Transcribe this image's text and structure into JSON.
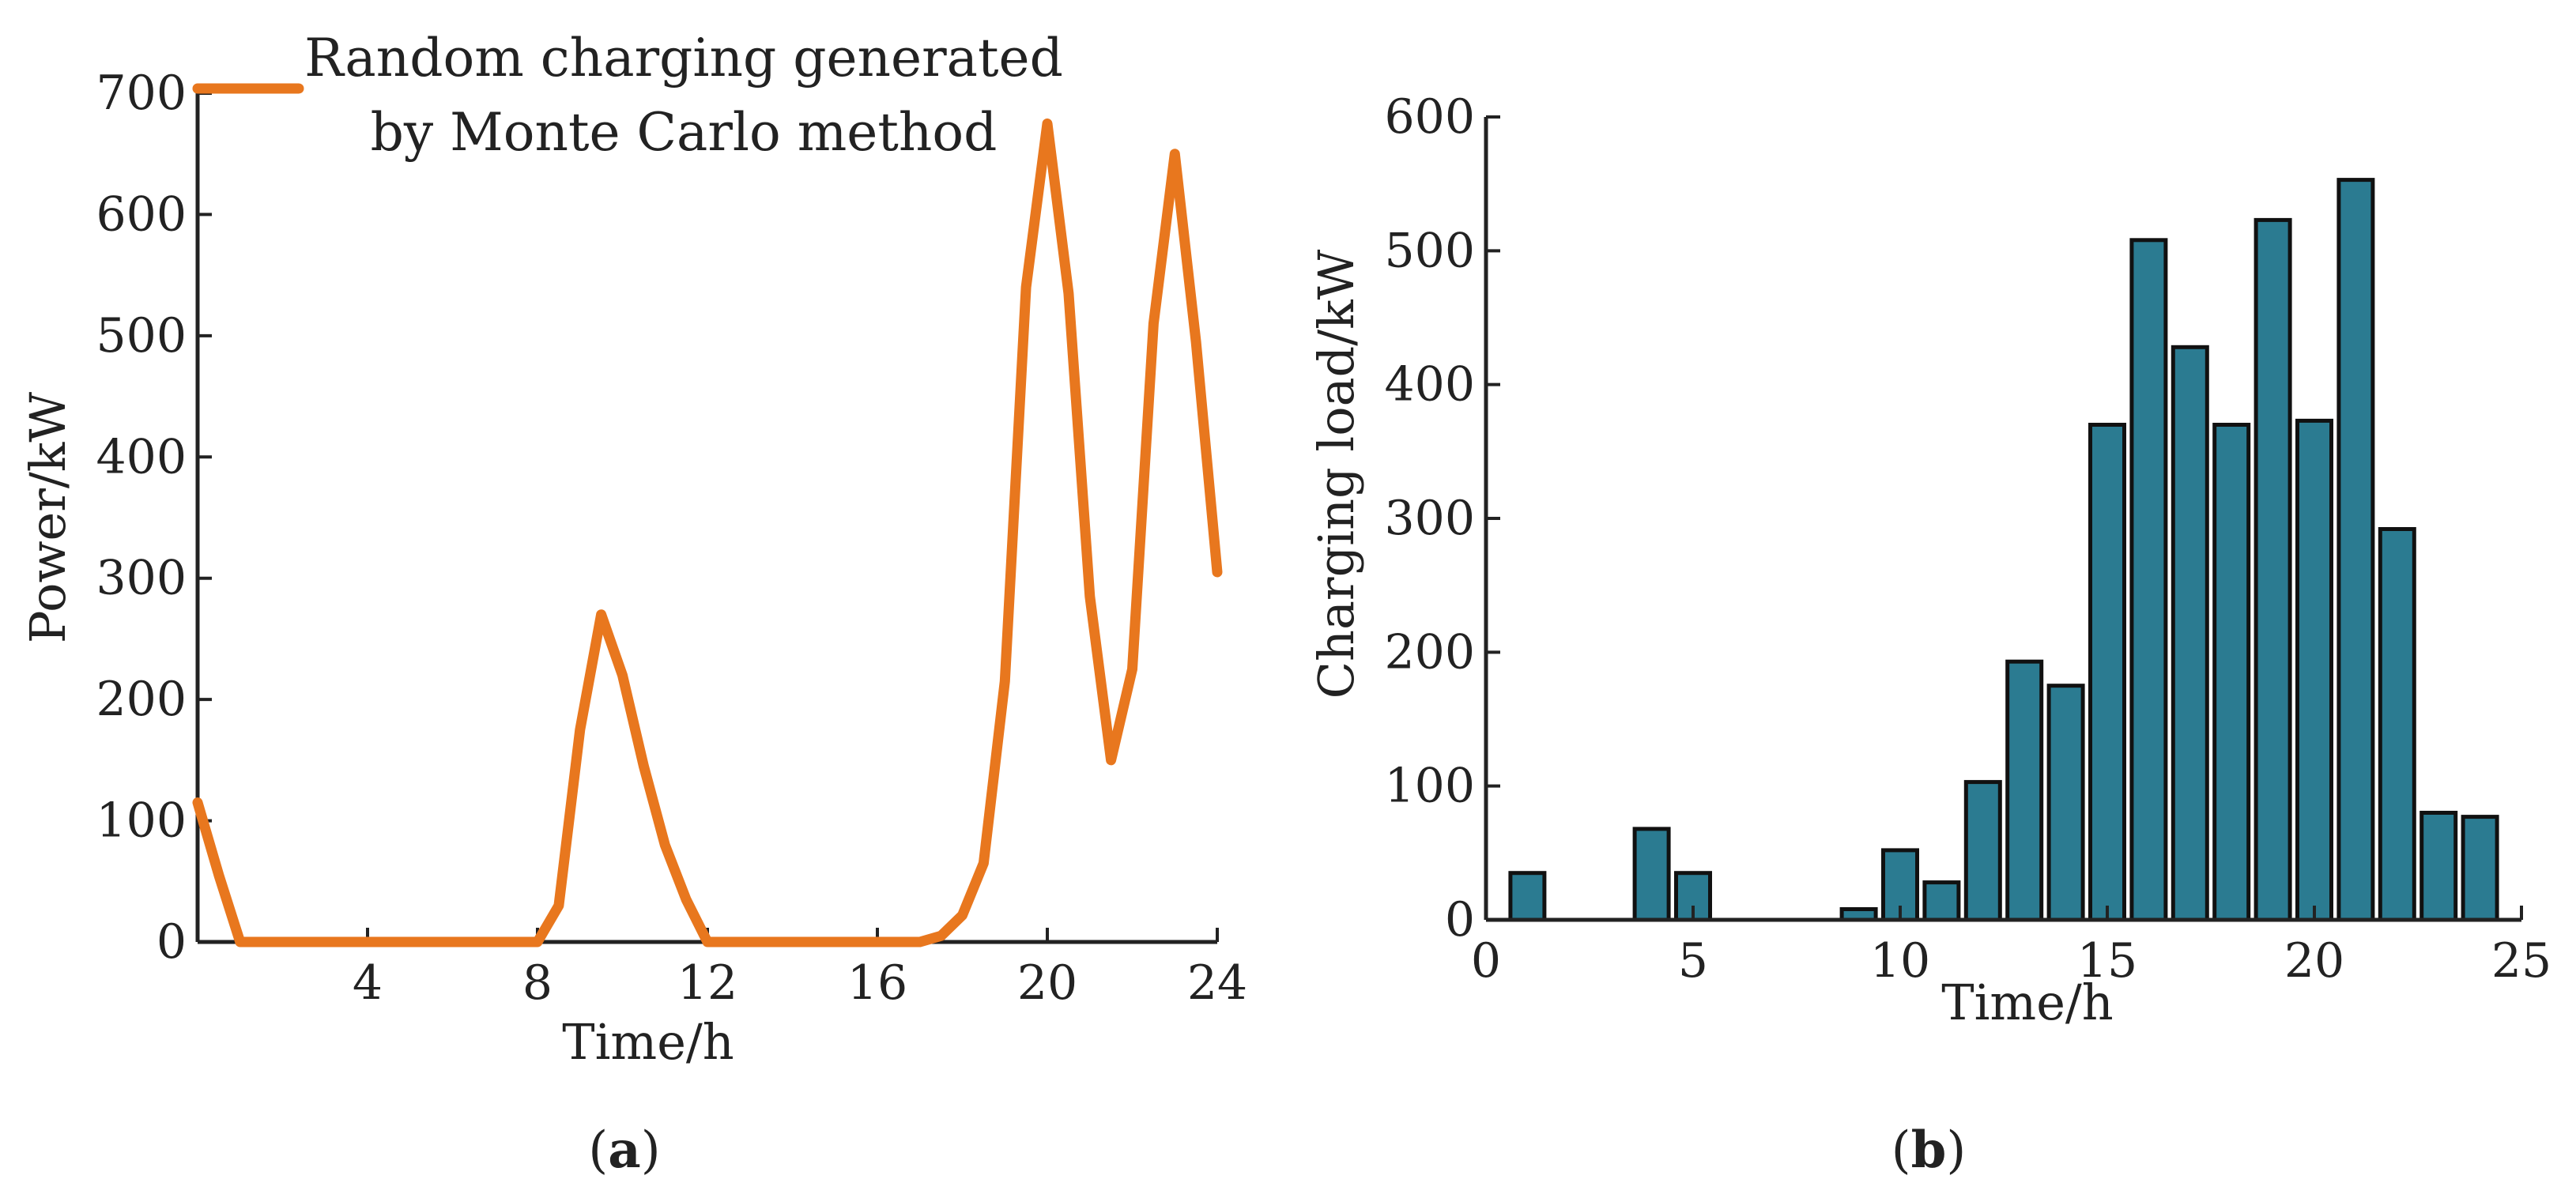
{
  "chart_data": [
    {
      "type": "line",
      "panel_label": "a",
      "xlabel": "Time/h",
      "ylabel": "Power/kW",
      "xlim": [
        0,
        24
      ],
      "ylim": [
        0,
        700
      ],
      "xticks": [
        4,
        8,
        12,
        16,
        20,
        24
      ],
      "yticks": [
        0,
        100,
        200,
        300,
        400,
        500,
        600,
        700
      ],
      "legend_position": "top-left",
      "series": [
        {
          "name": "Random charging generated by Monte Carlo method",
          "legend_lines": [
            "Random charging generated",
            "by Monte Carlo method"
          ],
          "color": "#E8771E",
          "x": [
            0,
            0.5,
            1,
            1.5,
            2,
            2.5,
            3,
            3.5,
            4,
            4.5,
            5,
            5.5,
            6,
            6.5,
            7,
            7.5,
            8,
            8.5,
            9,
            9.5,
            10,
            10.5,
            11,
            11.5,
            12,
            12.5,
            13,
            13.5,
            14,
            14.5,
            15,
            15.5,
            16,
            16.5,
            17,
            17.5,
            18,
            18.5,
            19,
            19.5,
            20,
            20.5,
            21,
            21.5,
            22,
            22.5,
            23,
            23.5,
            24
          ],
          "y": [
            115,
            55,
            0,
            0,
            0,
            0,
            0,
            0,
            0,
            0,
            0,
            0,
            0,
            0,
            0,
            0,
            0,
            30,
            175,
            270,
            220,
            145,
            80,
            35,
            0,
            0,
            0,
            0,
            0,
            0,
            0,
            0,
            0,
            0,
            0,
            5,
            22,
            65,
            215,
            540,
            675,
            535,
            285,
            150,
            225,
            510,
            650,
            495,
            305
          ]
        }
      ]
    },
    {
      "type": "bar",
      "panel_label": "b",
      "xlabel": "Time/h",
      "ylabel": "Charging load/kW",
      "xlim": [
        0,
        25
      ],
      "ylim": [
        0,
        600
      ],
      "xticks": [
        0,
        5,
        10,
        15,
        20,
        25
      ],
      "yticks": [
        0,
        100,
        200,
        300,
        400,
        500,
        600
      ],
      "color": "#2B7B91",
      "categories": [
        1,
        2,
        3,
        4,
        5,
        6,
        7,
        8,
        9,
        10,
        11,
        12,
        13,
        14,
        15,
        16,
        17,
        18,
        19,
        20,
        21,
        22,
        23,
        24
      ],
      "values": [
        35,
        0,
        0,
        68,
        35,
        0,
        0,
        0,
        8,
        52,
        28,
        103,
        193,
        175,
        370,
        508,
        428,
        370,
        523,
        373,
        553,
        292,
        80,
        77
      ]
    }
  ]
}
